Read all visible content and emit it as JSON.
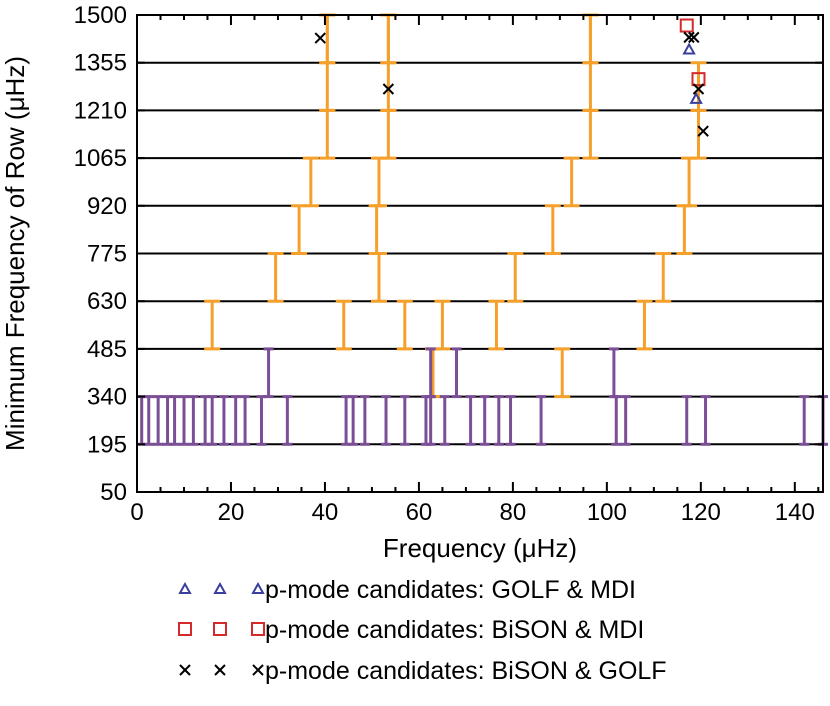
{
  "chart_data": {
    "type": "scatter",
    "xlabel": "Frequency (μHz)",
    "ylabel": "Minimum Frequency of Row (μHz)",
    "xlim": [
      0,
      146
    ],
    "ylim": [
      50,
      1500
    ],
    "x_ticks": [
      0,
      20,
      40,
      60,
      80,
      100,
      120,
      140
    ],
    "x_tick_labels": [
      "0",
      "20",
      "40",
      "60",
      "80",
      "100",
      "120",
      "140"
    ],
    "y_ticks": [
      50,
      195,
      340,
      485,
      630,
      775,
      920,
      1065,
      1210,
      1355,
      1500
    ],
    "y_tick_labels": [
      "50",
      "195",
      "340",
      "485",
      "630",
      "775",
      "920",
      "1065",
      "1210",
      "1355",
      "1500"
    ],
    "row_gridlines": true,
    "colors": {
      "orange": "#f5a02a",
      "purple": "#7b4f96",
      "golf_mdi": "#3a3e9c",
      "bison_mdi": "#d42a2a",
      "bison_golf": "#000000"
    },
    "orange_peaks": [
      {
        "row": 1355,
        "x": [
          40.5,
          53.5,
          96.5
        ]
      },
      {
        "row": 1210,
        "x": [
          40.5,
          53.5,
          96.5,
          119.5
        ]
      },
      {
        "row": 1065,
        "x": [
          40.5,
          53.5,
          96.5,
          119.5
        ]
      },
      {
        "row": 920,
        "x": [
          37,
          51.5,
          92.5,
          117.5
        ]
      },
      {
        "row": 775,
        "x": [
          34.5,
          51,
          88.5,
          116.5
        ]
      },
      {
        "row": 630,
        "x": [
          29.5,
          51.5,
          80.5,
          112
        ]
      },
      {
        "row": 485,
        "x": [
          16,
          44,
          57,
          65,
          76.5,
          108
        ]
      },
      {
        "row": 340,
        "x": [
          63,
          90.5
        ]
      }
    ],
    "orange_top_row": {
      "row": 1355,
      "x": [
        40.5,
        53.5,
        96.5
      ]
    },
    "purple_peaks": [
      {
        "row": 340,
        "x": [
          28,
          62.5,
          68,
          101.5
        ]
      },
      {
        "row": 195,
        "x": [
          1,
          2.5,
          4.5,
          6.5,
          8,
          10,
          12,
          14.5,
          16,
          18.5,
          21,
          23,
          26.5,
          32,
          44.5,
          46,
          48.5,
          53,
          57,
          61.5,
          62.5,
          65.5,
          71,
          74,
          77,
          79.5,
          86,
          102,
          104,
          117,
          121,
          142,
          146
        ]
      }
    ],
    "series": [
      {
        "name": "p-mode candidates: GOLF & MDI",
        "marker": "triangle",
        "points": [
          [
            117.5,
            1395
          ],
          [
            119,
            1245
          ]
        ]
      },
      {
        "name": "p-mode candidates: BiSON & MDI",
        "marker": "square",
        "points": [
          [
            117,
            1468
          ],
          [
            119.5,
            1305
          ]
        ]
      },
      {
        "name": "p-mode candidates: BiSON & GOLF",
        "marker": "x",
        "points": [
          [
            39,
            1430
          ],
          [
            53.5,
            1275
          ],
          [
            117.5,
            1432
          ],
          [
            118.5,
            1432
          ],
          [
            119.5,
            1275
          ],
          [
            120.5,
            1147
          ]
        ]
      }
    ],
    "legend_position": "bottom"
  }
}
